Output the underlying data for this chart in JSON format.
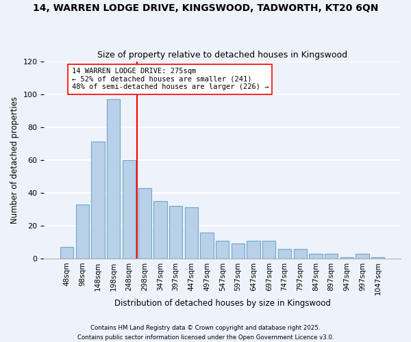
{
  "title_line1": "14, WARREN LODGE DRIVE, KINGSWOOD, TADWORTH, KT20 6QN",
  "title_line2": "Size of property relative to detached houses in Kingswood",
  "xlabel": "Distribution of detached houses by size in Kingswood",
  "ylabel": "Number of detached properties",
  "bar_labels": [
    "48sqm",
    "98sqm",
    "148sqm",
    "198sqm",
    "248sqm",
    "298sqm",
    "347sqm",
    "397sqm",
    "447sqm",
    "497sqm",
    "547sqm",
    "597sqm",
    "647sqm",
    "697sqm",
    "747sqm",
    "797sqm",
    "847sqm",
    "897sqm",
    "947sqm",
    "997sqm",
    "1047sqm"
  ],
  "bar_values": [
    7,
    33,
    71,
    97,
    60,
    43,
    35,
    32,
    31,
    16,
    11,
    9,
    11,
    11,
    6,
    6,
    3,
    3,
    1,
    3,
    1
  ],
  "bar_color": "#b8d0e8",
  "bar_edge_color": "#6fa8cc",
  "vline_x": 4.5,
  "vline_color": "red",
  "annotation_title": "14 WARREN LODGE DRIVE: 275sqm",
  "annotation_line1": "← 52% of detached houses are smaller (241)",
  "annotation_line2": "48% of semi-detached houses are larger (226) →",
  "ylim": [
    0,
    120
  ],
  "yticks": [
    0,
    20,
    40,
    60,
    80,
    100,
    120
  ],
  "footer1": "Contains HM Land Registry data © Crown copyright and database right 2025.",
  "footer2": "Contains public sector information licensed under the Open Government Licence v3.0.",
  "background_color": "#eef2fa",
  "grid_color": "#ffffff"
}
